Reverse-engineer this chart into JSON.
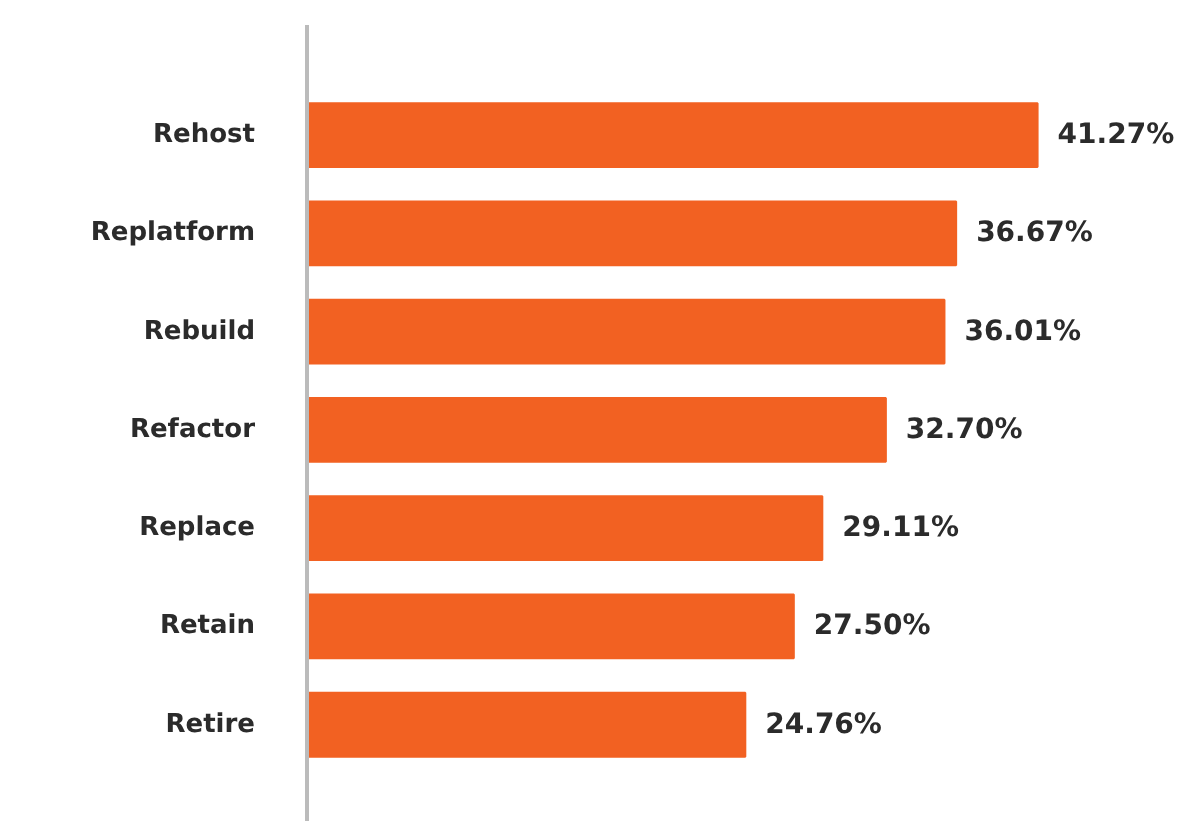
{
  "chart_data": {
    "type": "bar",
    "orientation": "horizontal",
    "categories": [
      "Rehost",
      "Replatform",
      "Rebuild",
      "Refactor",
      "Replace",
      "Retain",
      "Retire"
    ],
    "values": [
      41.27,
      36.67,
      36.01,
      32.7,
      29.11,
      27.5,
      24.76
    ],
    "value_labels": [
      "41.27%",
      "36.67%",
      "36.01%",
      "32.70%",
      "29.11%",
      "27.50%",
      "24.76%"
    ],
    "color": "#f26122"
  }
}
